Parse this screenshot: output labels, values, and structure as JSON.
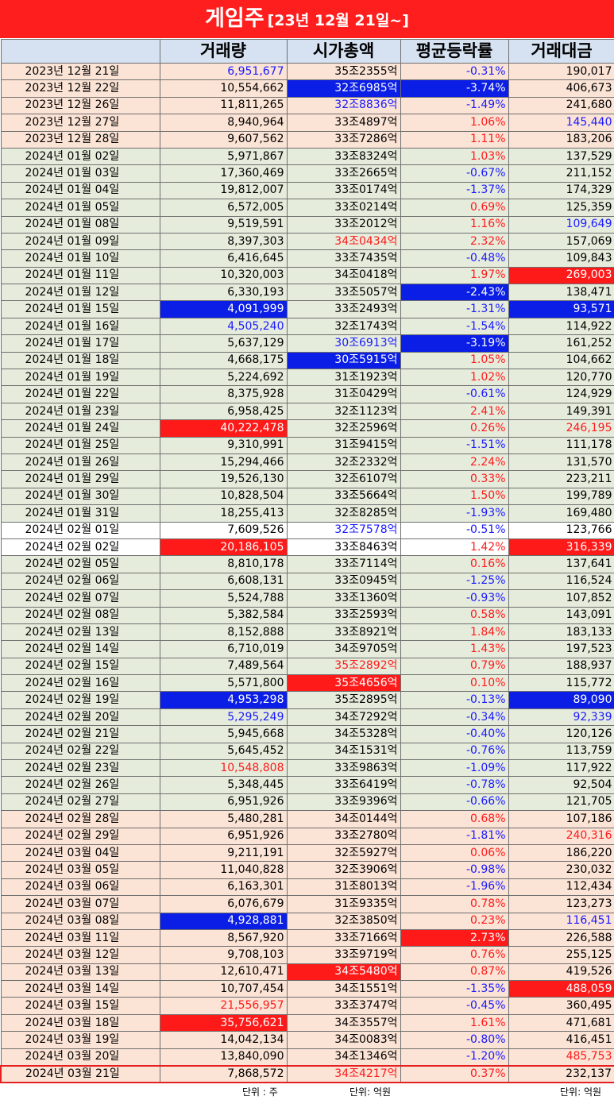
{
  "title": {
    "main": "게임주",
    "sub": "[23년 12월 21일~]"
  },
  "columns": [
    "",
    "거래량",
    "시가총액",
    "평균등락률",
    "거래대금"
  ],
  "colors": {
    "title_bg": "#ff1e1e",
    "highlight_blue": "#0a1ee6",
    "highlight_red": "#ff1a1a",
    "text_red": "#ff1a1a",
    "text_blue": "#1a1aff"
  },
  "rows": [
    {
      "date": "2023년 12월 21일",
      "volume": "6,951,677",
      "cap": "35조2355억",
      "rate": "-0.31%",
      "amount": "190,017"
    },
    {
      "date": "2023년 12월 22일",
      "volume": "10,554,662",
      "cap": "32조6985억",
      "rate": "-3.74%",
      "amount": "406,673"
    },
    {
      "date": "2023년 12월 26일",
      "volume": "11,811,265",
      "cap": "32조8836억",
      "rate": "-1.49%",
      "amount": "241,680"
    },
    {
      "date": "2023년 12월 27일",
      "volume": "8,940,964",
      "cap": "33조4897억",
      "rate": "1.06%",
      "amount": "145,440"
    },
    {
      "date": "2023년 12월 28일",
      "volume": "9,607,562",
      "cap": "33조7286억",
      "rate": "1.11%",
      "amount": "183,206"
    },
    {
      "date": "2024년 01월 02일",
      "volume": "5,971,867",
      "cap": "33조8324억",
      "rate": "1.03%",
      "amount": "137,529"
    },
    {
      "date": "2024년 01월 03일",
      "volume": "17,360,469",
      "cap": "33조2665억",
      "rate": "-0.67%",
      "amount": "211,152"
    },
    {
      "date": "2024년 01월 04일",
      "volume": "19,812,007",
      "cap": "33조0174억",
      "rate": "-1.37%",
      "amount": "174,329"
    },
    {
      "date": "2024년 01월 05일",
      "volume": "6,572,005",
      "cap": "33조0214억",
      "rate": "0.69%",
      "amount": "125,359"
    },
    {
      "date": "2024년 01월 08일",
      "volume": "9,519,591",
      "cap": "33조2012억",
      "rate": "1.16%",
      "amount": "109,649"
    },
    {
      "date": "2024년 01월 09일",
      "volume": "8,397,303",
      "cap": "34조0434억",
      "rate": "2.32%",
      "amount": "157,069"
    },
    {
      "date": "2024년 01월 10일",
      "volume": "6,416,645",
      "cap": "33조7435억",
      "rate": "-0.48%",
      "amount": "109,843"
    },
    {
      "date": "2024년 01월 11일",
      "volume": "10,320,003",
      "cap": "34조0418억",
      "rate": "1.97%",
      "amount": "269,003"
    },
    {
      "date": "2024년 01월 12일",
      "volume": "6,330,193",
      "cap": "33조5057억",
      "rate": "-2.43%",
      "amount": "138,471"
    },
    {
      "date": "2024년 01월 15일",
      "volume": "4,091,999",
      "cap": "33조2493억",
      "rate": "-1.31%",
      "amount": "93,571"
    },
    {
      "date": "2024년 01월 16일",
      "volume": "4,505,240",
      "cap": "32조1743억",
      "rate": "-1.54%",
      "amount": "114,922"
    },
    {
      "date": "2024년 01월 17일",
      "volume": "5,637,129",
      "cap": "30조6913억",
      "rate": "-3.19%",
      "amount": "161,252"
    },
    {
      "date": "2024년 01월 18일",
      "volume": "4,668,175",
      "cap": "30조5915억",
      "rate": "1.05%",
      "amount": "104,662"
    },
    {
      "date": "2024년 01월 19일",
      "volume": "5,224,692",
      "cap": "31조1923억",
      "rate": "1.02%",
      "amount": "120,770"
    },
    {
      "date": "2024년 01월 22일",
      "volume": "8,375,928",
      "cap": "31조0429억",
      "rate": "-0.61%",
      "amount": "124,929"
    },
    {
      "date": "2024년 01월 23일",
      "volume": "6,958,425",
      "cap": "32조1123억",
      "rate": "2.41%",
      "amount": "149,391"
    },
    {
      "date": "2024년 01월 24일",
      "volume": "40,222,478",
      "cap": "32조2596억",
      "rate": "0.26%",
      "amount": "246,195"
    },
    {
      "date": "2024년 01월 25일",
      "volume": "9,310,991",
      "cap": "31조9415억",
      "rate": "-1.51%",
      "amount": "111,178"
    },
    {
      "date": "2024년 01월 26일",
      "volume": "15,294,466",
      "cap": "32조2332억",
      "rate": "2.24%",
      "amount": "131,570"
    },
    {
      "date": "2024년 01월 29일",
      "volume": "19,526,130",
      "cap": "32조6107억",
      "rate": "0.33%",
      "amount": "223,211"
    },
    {
      "date": "2024년 01월 30일",
      "volume": "10,828,504",
      "cap": "33조5664억",
      "rate": "1.50%",
      "amount": "199,789"
    },
    {
      "date": "2024년 01월 31일",
      "volume": "18,255,413",
      "cap": "32조8285억",
      "rate": "-1.93%",
      "amount": "169,480"
    },
    {
      "date": "2024년 02월 01일",
      "volume": "7,609,526",
      "cap": "32조7578억",
      "rate": "-0.51%",
      "amount": "123,766"
    },
    {
      "date": "2024년 02월 02일",
      "volume": "20,186,105",
      "cap": "33조8463억",
      "rate": "1.42%",
      "amount": "316,339"
    },
    {
      "date": "2024년 02월 05일",
      "volume": "8,810,178",
      "cap": "33조7114억",
      "rate": "0.16%",
      "amount": "137,641"
    },
    {
      "date": "2024년 02월 06일",
      "volume": "6,608,131",
      "cap": "33조0945억",
      "rate": "-1.25%",
      "amount": "116,524"
    },
    {
      "date": "2024년 02월 07일",
      "volume": "5,524,788",
      "cap": "33조1360억",
      "rate": "-0.93%",
      "amount": "107,852"
    },
    {
      "date": "2024년 02월 08일",
      "volume": "5,382,584",
      "cap": "33조2593억",
      "rate": "0.58%",
      "amount": "143,091"
    },
    {
      "date": "2024년 02월 13일",
      "volume": "8,152,888",
      "cap": "33조8921억",
      "rate": "1.84%",
      "amount": "183,133"
    },
    {
      "date": "2024년 02월 14일",
      "volume": "6,710,019",
      "cap": "34조9705억",
      "rate": "1.43%",
      "amount": "197,523"
    },
    {
      "date": "2024년 02월 15일",
      "volume": "7,489,564",
      "cap": "35조2892억",
      "rate": "0.79%",
      "amount": "188,937"
    },
    {
      "date": "2024년 02월 16일",
      "volume": "5,571,800",
      "cap": "35조4656억",
      "rate": "0.10%",
      "amount": "115,772"
    },
    {
      "date": "2024년 02월 19일",
      "volume": "4,953,298",
      "cap": "35조2895억",
      "rate": "-0.13%",
      "amount": "89,090"
    },
    {
      "date": "2024년 02월 20일",
      "volume": "5,295,249",
      "cap": "34조7292억",
      "rate": "-0.34%",
      "amount": "92,339"
    },
    {
      "date": "2024년 02월 21일",
      "volume": "5,945,668",
      "cap": "34조5328억",
      "rate": "-0.40%",
      "amount": "120,126"
    },
    {
      "date": "2024년 02월 22일",
      "volume": "5,645,452",
      "cap": "34조1531억",
      "rate": "-0.76%",
      "amount": "113,759"
    },
    {
      "date": "2024년 02월 23일",
      "volume": "10,548,808",
      "cap": "33조9863억",
      "rate": "-1.09%",
      "amount": "117,922"
    },
    {
      "date": "2024년 02월 26일",
      "volume": "5,348,445",
      "cap": "33조6419억",
      "rate": "-0.78%",
      "amount": "92,504"
    },
    {
      "date": "2024년 02월 27일",
      "volume": "6,951,926",
      "cap": "33조9396억",
      "rate": "-0.66%",
      "amount": "121,705"
    },
    {
      "date": "2024년 02월 28일",
      "volume": "5,480,281",
      "cap": "34조0144억",
      "rate": "0.68%",
      "amount": "107,186"
    },
    {
      "date": "2024년 02월 29일",
      "volume": "6,951,926",
      "cap": "33조2780억",
      "rate": "-1.81%",
      "amount": "240,316"
    },
    {
      "date": "2024년 03월 04일",
      "volume": "9,211,191",
      "cap": "32조5927억",
      "rate": "0.06%",
      "amount": "186,220"
    },
    {
      "date": "2024년 03월 05일",
      "volume": "11,040,828",
      "cap": "32조3906억",
      "rate": "-0.98%",
      "amount": "230,032"
    },
    {
      "date": "2024년 03월 06일",
      "volume": "6,163,301",
      "cap": "31조8013억",
      "rate": "-1.96%",
      "amount": "112,434"
    },
    {
      "date": "2024년 03월 07일",
      "volume": "6,076,679",
      "cap": "31조9335억",
      "rate": "0.78%",
      "amount": "123,273"
    },
    {
      "date": "2024년 03월 08일",
      "volume": "4,928,881",
      "cap": "32조3850억",
      "rate": "0.23%",
      "amount": "116,451"
    },
    {
      "date": "2024년 03월 11일",
      "volume": "8,567,920",
      "cap": "33조7166억",
      "rate": "2.73%",
      "amount": "226,588"
    },
    {
      "date": "2024년 03월 12일",
      "volume": "9,708,103",
      "cap": "33조9719억",
      "rate": "0.76%",
      "amount": "255,125"
    },
    {
      "date": "2024년 03월 13일",
      "volume": "12,610,471",
      "cap": "34조5480억",
      "rate": "0.87%",
      "amount": "419,526"
    },
    {
      "date": "2024년 03월 14일",
      "volume": "10,707,454",
      "cap": "34조1551억",
      "rate": "-1.35%",
      "amount": "488,059"
    },
    {
      "date": "2024년 03월 15일",
      "volume": "21,556,957",
      "cap": "33조3747억",
      "rate": "-0.45%",
      "amount": "360,495"
    },
    {
      "date": "2024년 03월 18일",
      "volume": "35,756,621",
      "cap": "34조3557억",
      "rate": "1.61%",
      "amount": "471,681"
    },
    {
      "date": "2024년 03월 19일",
      "volume": "14,042,134",
      "cap": "34조0083억",
      "rate": "-0.80%",
      "amount": "416,451"
    },
    {
      "date": "2024년 03월 20일",
      "volume": "13,840,090",
      "cap": "34조1346억",
      "rate": "-1.20%",
      "amount": "485,753"
    },
    {
      "date": "2024년 03월 21일",
      "volume": "7,868,572",
      "cap": "34조4217억",
      "rate": "0.37%",
      "amount": "232,137"
    }
  ],
  "units": {
    "volume": "단위 : 주",
    "cap": "단위: 억원",
    "amount": "단위: 억원"
  }
}
